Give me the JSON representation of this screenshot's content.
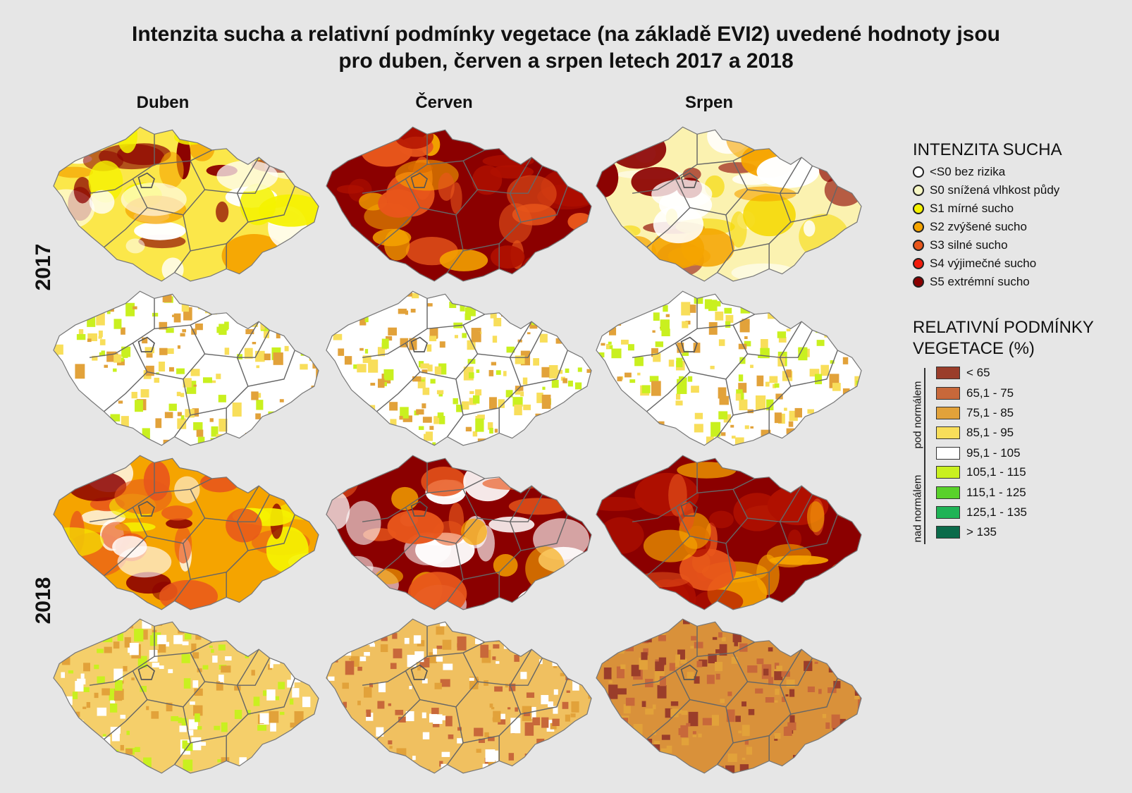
{
  "title_line1": "Intenzita sucha a relativní podmínky vegetace (na základě EVI2) uvedené hodnoty jsou",
  "title_line2": "pro duben, červen a srpen letech 2017 a 2018",
  "columns": [
    "Duben",
    "Červen",
    "Srpen"
  ],
  "years": [
    "2017",
    "2018"
  ],
  "legend_drought": {
    "heading": "INTENZITA SUCHA",
    "items": [
      {
        "label": "<S0 bez rizika",
        "color": "#ffffff"
      },
      {
        "label": "S0 snížená vlhkost půdy",
        "color": "#f7f7c4"
      },
      {
        "label": "S1 mírné sucho",
        "color": "#f5f200"
      },
      {
        "label": "S2 zvýšené sucho",
        "color": "#f5a400"
      },
      {
        "label": "S3 silné sucho",
        "color": "#e8561b"
      },
      {
        "label": "S4 výjimečné sucho",
        "color": "#f21c0c"
      },
      {
        "label": "S5 extrémní sucho",
        "color": "#8b0000"
      }
    ]
  },
  "legend_vegetation": {
    "heading_line1": "RELATIVNÍ PODMÍNKY",
    "heading_line2": "VEGETACE (%)",
    "below_label": "pod normálem",
    "above_label": "nad normálem",
    "items": [
      {
        "label": "< 65",
        "color": "#9a3d2a"
      },
      {
        "label": "65,1 - 75",
        "color": "#c8683a"
      },
      {
        "label": "75,1 - 85",
        "color": "#e2a23a"
      },
      {
        "label": "85,1 - 95",
        "color": "#f8de5a"
      },
      {
        "label": "95,1 - 105",
        "color": "#ffffff"
      },
      {
        "label": "105,1 - 115",
        "color": "#c9f01f"
      },
      {
        "label": "115,1 - 125",
        "color": "#59d12a"
      },
      {
        "label": "125,1 - 135",
        "color": "#1fb355"
      },
      {
        "label": "> 135",
        "color": "#0b6b4a"
      }
    ]
  },
  "maps": [
    {
      "name": "map-2017-duben-drought",
      "base": "#fbe74a",
      "patches": [
        "#ffffff",
        "#f5a400",
        "#8b0000",
        "#f5f200"
      ]
    },
    {
      "name": "map-2017-cerven-drought",
      "base": "#8b0000",
      "patches": [
        "#e8561b",
        "#f5a400",
        "#b01000"
      ]
    },
    {
      "name": "map-2017-srpen-drought",
      "base": "#fbf2b0",
      "patches": [
        "#ffffff",
        "#f5d800",
        "#f5a400",
        "#8b0000"
      ]
    },
    {
      "name": "map-2017-duben-vegetation",
      "base": "#ffffff",
      "patches": [
        "#f8de5a",
        "#e2a23a",
        "#c9f01f"
      ]
    },
    {
      "name": "map-2017-cerven-vegetation",
      "base": "#ffffff",
      "patches": [
        "#c9f01f",
        "#f8de5a",
        "#e2a23a"
      ]
    },
    {
      "name": "map-2017-srpen-vegetation",
      "base": "#ffffff",
      "patches": [
        "#f8de5a",
        "#e2a23a",
        "#c9f01f"
      ]
    },
    {
      "name": "map-2018-duben-drought",
      "base": "#f5a400",
      "patches": [
        "#e8561b",
        "#8b0000",
        "#ffffff",
        "#f5f200"
      ]
    },
    {
      "name": "map-2018-cerven-drought",
      "base": "#8b0000",
      "patches": [
        "#ffffff",
        "#f5a400",
        "#e8561b"
      ]
    },
    {
      "name": "map-2018-srpen-drought",
      "base": "#8b0000",
      "patches": [
        "#e8561b",
        "#f5a400",
        "#b01000"
      ]
    },
    {
      "name": "map-2018-duben-vegetation",
      "base": "#f5cf6a",
      "patches": [
        "#ffffff",
        "#e2a23a",
        "#c9f01f"
      ]
    },
    {
      "name": "map-2018-cerven-vegetation",
      "base": "#f0c060",
      "patches": [
        "#e2a23a",
        "#c8683a",
        "#ffffff"
      ]
    },
    {
      "name": "map-2018-srpen-vegetation",
      "base": "#d9913a",
      "patches": [
        "#c8683a",
        "#e2a23a",
        "#9a3d2a"
      ]
    }
  ]
}
